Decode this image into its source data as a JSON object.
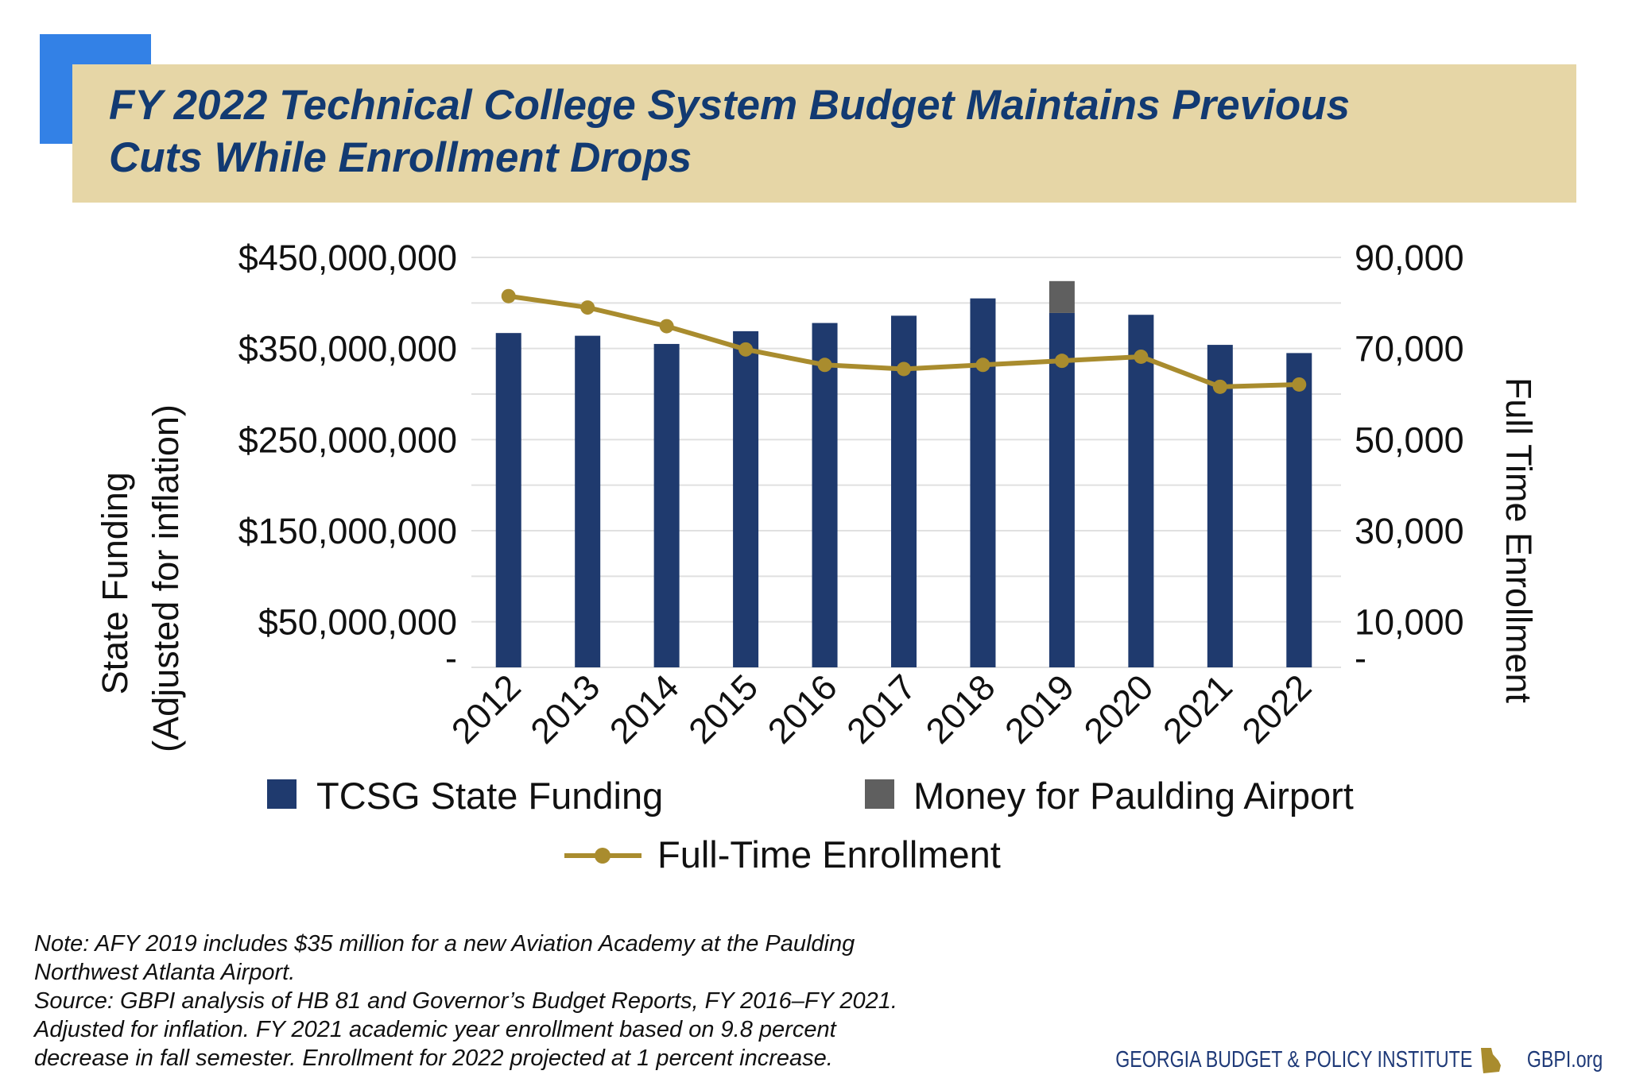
{
  "title": "FY 2022 Technical College System Budget Maintains Previous Cuts While Enrollment Drops",
  "title_lines": [
    "FY 2022 Technical College System Budget Maintains Previous",
    "Cuts While Enrollment Drops"
  ],
  "colors": {
    "accent_square": "#3381e6",
    "banner": "#e6d6a6",
    "title": "#123a72",
    "funding": "#1f3a6e",
    "airport": "#5f5f5f",
    "enrollment": "#a98c2e"
  },
  "chart_data": {
    "type": "bar+line",
    "categories": [
      "2012",
      "2013",
      "2014",
      "2015",
      "2016",
      "2017",
      "2018",
      "2019",
      "2020",
      "2021",
      "2022"
    ],
    "series": [
      {
        "name": "TCSG State Funding",
        "type": "stacked-bar",
        "axis": "left",
        "color": "#1f3a6e",
        "values": [
          367000000,
          364000000,
          355000000,
          369000000,
          378000000,
          386000000,
          405000000,
          389000000,
          387000000,
          354000000,
          345000000
        ]
      },
      {
        "name": "Money for Paulding Airport",
        "type": "stacked-bar",
        "axis": "left",
        "color": "#5f5f5f",
        "values": [
          0,
          0,
          0,
          0,
          0,
          0,
          0,
          35000000,
          0,
          0,
          0
        ]
      },
      {
        "name": "Full-Time Enrollment",
        "type": "line",
        "axis": "right",
        "color": "#a98c2e",
        "values": [
          81500,
          79000,
          74900,
          69800,
          66400,
          65500,
          66400,
          67300,
          68200,
          61600,
          62100
        ]
      }
    ],
    "ylabel": "State Funding (Adjusted for inflation)",
    "ylabel_lines": [
      "State Funding",
      "(Adjusted for inflation)"
    ],
    "y2label": "Full Time Enrollment",
    "ylim": [
      0,
      450000000
    ],
    "y2lim": [
      0,
      90000
    ],
    "y_ticks": [
      "$450,000,000",
      "$350,000,000",
      "$250,000,000",
      "$150,000,000",
      "$50,000,000",
      "-"
    ],
    "y_tick_values": [
      450000000,
      350000000,
      250000000,
      150000000,
      50000000,
      0
    ],
    "y2_ticks": [
      "90,000",
      "70,000",
      "50,000",
      "30,000",
      "10,000",
      "-"
    ],
    "grid": true,
    "legend_position": "bottom"
  },
  "notes": [
    "Note: AFY 2019 includes $35 million for a new Aviation Academy at the Paulding",
    "Northwest Atlanta Airport.",
    "Source: GBPI analysis of HB 81 and Governor’s Budget Reports, FY 2016–FY 2021.",
    "Adjusted for inflation. FY 2021 academic year enrollment based on 9.8 percent",
    "decrease in fall semester. Enrollment for 2022 projected at 1 percent increase."
  ],
  "footer": {
    "org": "GEORGIA BUDGET & POLICY INSTITUTE",
    "url": "GBPI.org",
    "logo_icon": "georgia-state-icon"
  }
}
